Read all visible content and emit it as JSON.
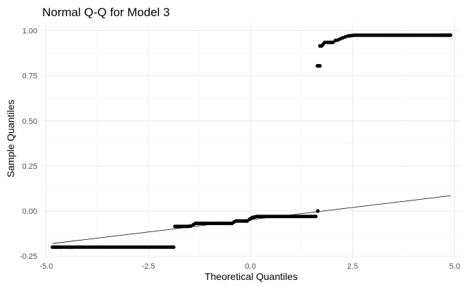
{
  "chart_data": {
    "type": "scatter",
    "title": "Normal Q-Q for Model 3",
    "xlabel": "Theoretical Quantiles",
    "ylabel": "Sample Quantiles",
    "xlim": [
      -5.1,
      5.15
    ],
    "ylim": [
      -0.265,
      1.045
    ],
    "x_ticks": [
      -5.0,
      -2.5,
      0.0,
      2.5,
      5.0
    ],
    "x_tick_labels": [
      "-5.0",
      "-2.5",
      "0.0",
      "2.5",
      "5.0"
    ],
    "y_ticks": [
      -0.25,
      0.0,
      0.25,
      0.5,
      0.75,
      1.0
    ],
    "y_tick_labels": [
      "-0.25",
      "0.00",
      "0.25",
      "0.50",
      "0.75",
      "1.00"
    ],
    "grid": true,
    "point_color": "#000000",
    "reference_line": {
      "x": [
        -4.85,
        4.9
      ],
      "y": [
        -0.18,
        0.085
      ]
    },
    "points": [
      [
        -4.85,
        -0.2
      ],
      [
        -4.6,
        -0.2
      ],
      [
        -4.5,
        -0.2
      ],
      [
        -4.42,
        -0.2
      ],
      [
        -4.35,
        -0.2
      ],
      [
        -4.25,
        -0.2
      ],
      [
        -4.15,
        -0.2
      ],
      [
        -4.05,
        -0.2
      ],
      [
        -3.95,
        -0.2
      ],
      [
        -3.85,
        -0.2
      ],
      [
        -3.75,
        -0.2
      ],
      [
        -3.65,
        -0.2
      ],
      [
        -3.55,
        -0.2
      ],
      [
        -3.45,
        -0.2
      ],
      [
        -3.35,
        -0.2
      ],
      [
        -3.25,
        -0.2
      ],
      [
        -3.15,
        -0.2
      ],
      [
        -3.05,
        -0.2
      ],
      [
        -2.95,
        -0.2
      ],
      [
        -2.85,
        -0.2
      ],
      [
        -2.75,
        -0.2
      ],
      [
        -2.65,
        -0.2
      ],
      [
        -2.55,
        -0.2
      ],
      [
        -2.45,
        -0.2
      ],
      [
        -2.35,
        -0.2
      ],
      [
        -2.25,
        -0.2
      ],
      [
        -2.15,
        -0.2
      ],
      [
        -2.05,
        -0.2
      ],
      [
        -1.95,
        -0.2
      ],
      [
        -1.88,
        -0.2
      ],
      [
        -1.85,
        -0.085
      ],
      [
        -1.78,
        -0.085
      ],
      [
        -1.7,
        -0.085
      ],
      [
        -1.62,
        -0.085
      ],
      [
        -1.54,
        -0.085
      ],
      [
        -1.46,
        -0.083
      ],
      [
        -1.4,
        -0.075
      ],
      [
        -1.35,
        -0.068
      ],
      [
        -1.25,
        -0.068
      ],
      [
        -1.15,
        -0.068
      ],
      [
        -1.05,
        -0.068
      ],
      [
        -0.95,
        -0.068
      ],
      [
        -0.85,
        -0.068
      ],
      [
        -0.75,
        -0.068
      ],
      [
        -0.65,
        -0.068
      ],
      [
        -0.55,
        -0.068
      ],
      [
        -0.45,
        -0.068
      ],
      [
        -0.4,
        -0.06
      ],
      [
        -0.35,
        -0.055
      ],
      [
        -0.25,
        -0.055
      ],
      [
        -0.15,
        -0.055
      ],
      [
        -0.08,
        -0.055
      ],
      [
        -0.02,
        -0.045
      ],
      [
        0.05,
        -0.035
      ],
      [
        0.15,
        -0.03
      ],
      [
        0.25,
        -0.03
      ],
      [
        0.35,
        -0.03
      ],
      [
        0.45,
        -0.03
      ],
      [
        0.55,
        -0.03
      ],
      [
        0.65,
        -0.03
      ],
      [
        0.75,
        -0.03
      ],
      [
        0.85,
        -0.03
      ],
      [
        0.95,
        -0.03
      ],
      [
        1.05,
        -0.03
      ],
      [
        1.15,
        -0.03
      ],
      [
        1.25,
        -0.03
      ],
      [
        1.35,
        -0.03
      ],
      [
        1.45,
        -0.03
      ],
      [
        1.55,
        -0.03
      ],
      [
        1.6,
        -0.03
      ],
      [
        1.65,
        0.0
      ],
      [
        1.64,
        0.805
      ],
      [
        1.68,
        0.805
      ],
      [
        1.7,
        0.805
      ],
      [
        1.7,
        0.915
      ],
      [
        1.74,
        0.915
      ],
      [
        1.78,
        0.925
      ],
      [
        1.82,
        0.935
      ],
      [
        1.88,
        0.935
      ],
      [
        1.95,
        0.935
      ],
      [
        2.02,
        0.935
      ],
      [
        2.08,
        0.945
      ],
      [
        2.14,
        0.948
      ],
      [
        2.2,
        0.955
      ],
      [
        2.26,
        0.96
      ],
      [
        2.32,
        0.965
      ],
      [
        2.38,
        0.97
      ],
      [
        2.45,
        0.972
      ],
      [
        2.55,
        0.975
      ],
      [
        2.65,
        0.975
      ],
      [
        2.75,
        0.975
      ],
      [
        2.85,
        0.975
      ],
      [
        2.95,
        0.975
      ],
      [
        3.05,
        0.975
      ],
      [
        3.15,
        0.975
      ],
      [
        3.25,
        0.975
      ],
      [
        3.35,
        0.975
      ],
      [
        3.45,
        0.975
      ],
      [
        3.55,
        0.975
      ],
      [
        3.65,
        0.975
      ],
      [
        3.75,
        0.975
      ],
      [
        3.85,
        0.975
      ],
      [
        3.95,
        0.975
      ],
      [
        4.05,
        0.975
      ],
      [
        4.15,
        0.975
      ],
      [
        4.25,
        0.975
      ],
      [
        4.35,
        0.975
      ],
      [
        4.45,
        0.975
      ],
      [
        4.55,
        0.975
      ],
      [
        4.65,
        0.975
      ],
      [
        4.9,
        0.975
      ]
    ]
  }
}
